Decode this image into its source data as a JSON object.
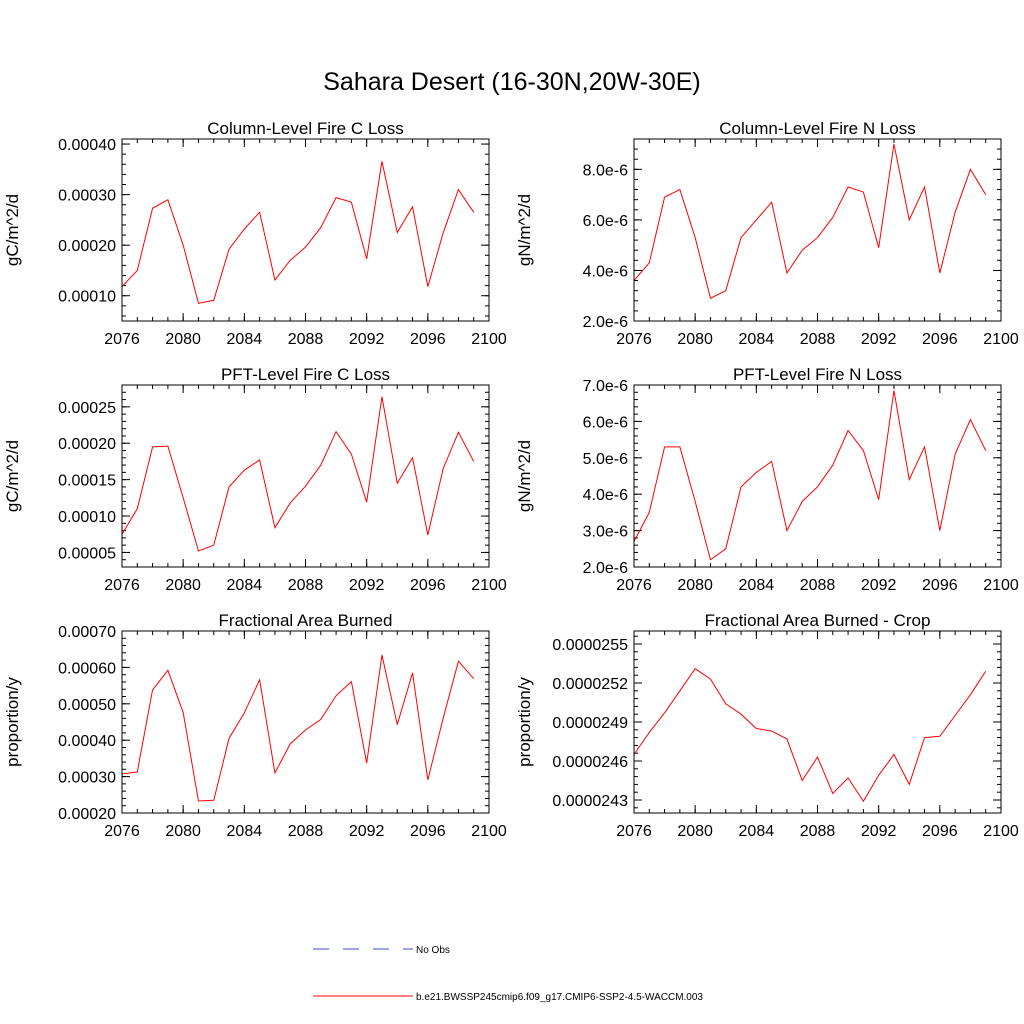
{
  "figure": {
    "title": "Sahara Desert (16-30N,20W-30E)"
  },
  "legend": {
    "items": [
      {
        "label": "No Obs",
        "color": "#3b4cc0",
        "dash": "dashed"
      },
      {
        "label": "b.e21.BWSSP245cmip6.f09_g17.CMIP6-SSP2-4.5-WACCM.003",
        "color": "#ff0000",
        "dash": "solid"
      }
    ]
  },
  "chart_data": [
    {
      "type": "line",
      "title": "Column-Level Fire C Loss",
      "ylabel": "gC/m^2/d",
      "xlim": [
        2076,
        2100
      ],
      "x_ticks": [
        "2076",
        "2080",
        "2084",
        "2088",
        "2092",
        "2096",
        "2100"
      ],
      "ylim": [
        5e-05,
        0.00041
      ],
      "y_ticks": [
        {
          "v": 0.0001,
          "label": "0.00010"
        },
        {
          "v": 0.0002,
          "label": "0.00020"
        },
        {
          "v": 0.0003,
          "label": "0.00030"
        },
        {
          "v": 0.0004,
          "label": "0.00040"
        }
      ],
      "series": [
        {
          "color": "#ff0000",
          "x": [
            2076,
            2077,
            2078,
            2079,
            2080,
            2081,
            2082,
            2083,
            2084,
            2085,
            2086,
            2087,
            2088,
            2089,
            2090,
            2091,
            2092,
            2093,
            2094,
            2095,
            2096,
            2097,
            2098,
            2099
          ],
          "values": [
            0.000118,
            0.00015,
            0.000273,
            0.00029,
            0.0002,
            8.5e-05,
            9.1e-05,
            0.000192,
            0.000232,
            0.000265,
            0.000131,
            0.00017,
            0.000196,
            0.000235,
            0.000294,
            0.000285,
            0.000173,
            0.000366,
            0.000225,
            0.000276,
            0.000118,
            0.000224,
            0.00031,
            0.000265
          ]
        }
      ]
    },
    {
      "type": "line",
      "title": "Column-Level Fire N Loss",
      "ylabel": "gN/m^2/d",
      "xlim": [
        2076,
        2100
      ],
      "x_ticks": [
        "2076",
        "2080",
        "2084",
        "2088",
        "2092",
        "2096",
        "2100"
      ],
      "ylim": [
        2e-06,
        9.2e-06
      ],
      "y_ticks": [
        {
          "v": 2e-06,
          "label": "2.0e-6"
        },
        {
          "v": 4e-06,
          "label": "4.0e-6"
        },
        {
          "v": 6e-06,
          "label": "6.0e-6"
        },
        {
          "v": 8e-06,
          "label": "8.0e-6"
        }
      ],
      "series": [
        {
          "color": "#ff0000",
          "x": [
            2076,
            2077,
            2078,
            2079,
            2080,
            2081,
            2082,
            2083,
            2084,
            2085,
            2086,
            2087,
            2088,
            2089,
            2090,
            2091,
            2092,
            2093,
            2094,
            2095,
            2096,
            2097,
            2098,
            2099
          ],
          "values": [
            3.6e-06,
            4.3e-06,
            6.9e-06,
            7.2e-06,
            5.3e-06,
            2.9e-06,
            3.2e-06,
            5.3e-06,
            6e-06,
            6.7e-06,
            3.9e-06,
            4.8e-06,
            5.3e-06,
            6.1e-06,
            7.3e-06,
            7.1e-06,
            4.9e-06,
            9e-06,
            6e-06,
            7.3e-06,
            3.9e-06,
            6.3e-06,
            8e-06,
            7e-06
          ]
        }
      ]
    },
    {
      "type": "line",
      "title": "PFT-Level Fire C Loss",
      "ylabel": "gC/m^2/d",
      "xlim": [
        2076,
        2100
      ],
      "x_ticks": [
        "2076",
        "2080",
        "2084",
        "2088",
        "2092",
        "2096",
        "2100"
      ],
      "ylim": [
        3e-05,
        0.00028
      ],
      "y_ticks": [
        {
          "v": 5e-05,
          "label": "0.00005"
        },
        {
          "v": 0.0001,
          "label": "0.00010"
        },
        {
          "v": 0.00015,
          "label": "0.00015"
        },
        {
          "v": 0.0002,
          "label": "0.00020"
        },
        {
          "v": 0.00025,
          "label": "0.00025"
        }
      ],
      "series": [
        {
          "color": "#ff0000",
          "x": [
            2076,
            2077,
            2078,
            2079,
            2080,
            2081,
            2082,
            2083,
            2084,
            2085,
            2086,
            2087,
            2088,
            2089,
            2090,
            2091,
            2092,
            2093,
            2094,
            2095,
            2096,
            2097,
            2098,
            2099
          ],
          "values": [
            7.5e-05,
            0.00011,
            0.000195,
            0.000196,
            0.000125,
            5.2e-05,
            6e-05,
            0.00014,
            0.000163,
            0.000177,
            8.4e-05,
            0.000118,
            0.000141,
            0.00017,
            0.000216,
            0.000185,
            0.000119,
            0.000264,
            0.000145,
            0.00018,
            7.4e-05,
            0.000165,
            0.000215,
            0.000175
          ]
        }
      ]
    },
    {
      "type": "line",
      "title": "PFT-Level Fire N Loss",
      "ylabel": "gN/m^2/d",
      "xlim": [
        2076,
        2100
      ],
      "x_ticks": [
        "2076",
        "2080",
        "2084",
        "2088",
        "2092",
        "2096",
        "2100"
      ],
      "ylim": [
        2e-06,
        7e-06
      ],
      "y_ticks": [
        {
          "v": 2e-06,
          "label": "2.0e-6"
        },
        {
          "v": 3e-06,
          "label": "3.0e-6"
        },
        {
          "v": 4e-06,
          "label": "4.0e-6"
        },
        {
          "v": 5e-06,
          "label": "5.0e-6"
        },
        {
          "v": 6e-06,
          "label": "6.0e-6"
        },
        {
          "v": 7e-06,
          "label": "7.0e-6"
        }
      ],
      "series": [
        {
          "color": "#ff0000",
          "x": [
            2076,
            2077,
            2078,
            2079,
            2080,
            2081,
            2082,
            2083,
            2084,
            2085,
            2086,
            2087,
            2088,
            2089,
            2090,
            2091,
            2092,
            2093,
            2094,
            2095,
            2096,
            2097,
            2098,
            2099
          ],
          "values": [
            2.7e-06,
            3.5e-06,
            5.3e-06,
            5.3e-06,
            3.8e-06,
            2.2e-06,
            2.5e-06,
            4.2e-06,
            4.6e-06,
            4.9e-06,
            3e-06,
            3.8e-06,
            4.2e-06,
            4.8e-06,
            5.75e-06,
            5.2e-06,
            3.85e-06,
            6.85e-06,
            4.4e-06,
            5.3e-06,
            3e-06,
            5.1e-06,
            6.05e-06,
            5.2e-06
          ]
        }
      ]
    },
    {
      "type": "line",
      "title": "Fractional Area Burned",
      "ylabel": "proportion/y",
      "xlim": [
        2076,
        2100
      ],
      "x_ticks": [
        "2076",
        "2080",
        "2084",
        "2088",
        "2092",
        "2096",
        "2100"
      ],
      "ylim": [
        0.0002,
        0.0007
      ],
      "y_ticks": [
        {
          "v": 0.0002,
          "label": "0.00020"
        },
        {
          "v": 0.0003,
          "label": "0.00030"
        },
        {
          "v": 0.0004,
          "label": "0.00040"
        },
        {
          "v": 0.0005,
          "label": "0.00050"
        },
        {
          "v": 0.0006,
          "label": "0.00060"
        },
        {
          "v": 0.0007,
          "label": "0.00070"
        }
      ],
      "series": [
        {
          "color": "#ff0000",
          "x": [
            2076,
            2077,
            2078,
            2079,
            2080,
            2081,
            2082,
            2083,
            2084,
            2085,
            2086,
            2087,
            2088,
            2089,
            2090,
            2091,
            2092,
            2093,
            2094,
            2095,
            2096,
            2097,
            2098,
            2099
          ],
          "values": [
            0.000307,
            0.000313,
            0.000538,
            0.000592,
            0.000476,
            0.000233,
            0.000235,
            0.000405,
            0.000475,
            0.000566,
            0.00031,
            0.00039,
            0.000428,
            0.000457,
            0.000522,
            0.000561,
            0.000337,
            0.000634,
            0.000443,
            0.000585,
            0.000291,
            0.00046,
            0.000617,
            0.000569
          ]
        }
      ]
    },
    {
      "type": "line",
      "title": "Fractional Area Burned - Crop",
      "ylabel": "proportion/y",
      "xlim": [
        2076,
        2100
      ],
      "x_ticks": [
        "2076",
        "2080",
        "2084",
        "2088",
        "2092",
        "2096",
        "2100"
      ],
      "ylim": [
        2.42e-05,
        2.56e-05
      ],
      "y_ticks": [
        {
          "v": 2.43e-05,
          "label": "0.0000243"
        },
        {
          "v": 2.46e-05,
          "label": "0.0000246"
        },
        {
          "v": 2.49e-05,
          "label": "0.0000249"
        },
        {
          "v": 2.52e-05,
          "label": "0.0000252"
        },
        {
          "v": 2.55e-05,
          "label": "0.0000255"
        }
      ],
      "series": [
        {
          "color": "#ff0000",
          "x": [
            2076,
            2077,
            2078,
            2079,
            2080,
            2081,
            2082,
            2083,
            2084,
            2085,
            2086,
            2087,
            2088,
            2089,
            2090,
            2091,
            2092,
            2093,
            2094,
            2095,
            2096,
            2097,
            2098,
            2099
          ],
          "values": [
            2.465e-05,
            2.482e-05,
            2.497e-05,
            2.514e-05,
            2.531e-05,
            2.523e-05,
            2.504e-05,
            2.496e-05,
            2.485e-05,
            2.483e-05,
            2.477e-05,
            2.445e-05,
            2.463e-05,
            2.435e-05,
            2.447e-05,
            2.429e-05,
            2.449e-05,
            2.465e-05,
            2.442e-05,
            2.478e-05,
            2.479e-05,
            2.495e-05,
            2.511e-05,
            2.529e-05
          ]
        }
      ]
    }
  ]
}
